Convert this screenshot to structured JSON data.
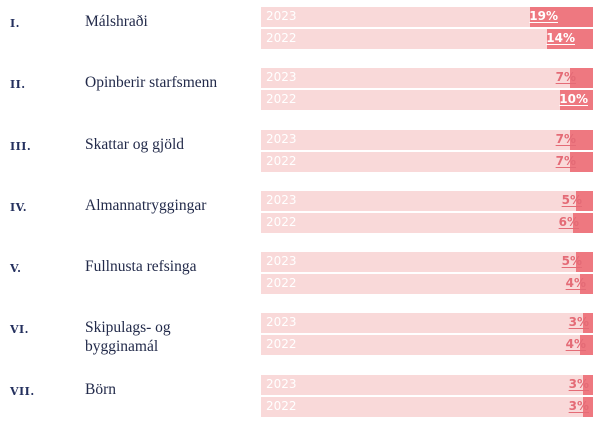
{
  "chart_data": {
    "type": "bar",
    "orientation": "horizontal",
    "categories": [
      {
        "numeral": "I.",
        "label": "Málshraði"
      },
      {
        "numeral": "II.",
        "label": "Opinberir starfsmenn"
      },
      {
        "numeral": "III.",
        "label": "Skattar og gjöld"
      },
      {
        "numeral": "IV.",
        "label": "Almannatryggingar"
      },
      {
        "numeral": "V.",
        "label": "Fullnusta refsinga"
      },
      {
        "numeral": "VI.",
        "label": "Skipulags- og bygginamál"
      },
      {
        "numeral": "VII.",
        "label": "Börn"
      }
    ],
    "series": [
      {
        "name": "2023",
        "values": [
          19,
          7,
          7,
          5,
          5,
          3,
          3
        ]
      },
      {
        "name": "2022",
        "values": [
          14,
          10,
          7,
          6,
          4,
          4,
          3
        ]
      }
    ],
    "value_suffix": "%",
    "xlim": [
      0,
      100
    ],
    "colors": {
      "track": "#f9d9d9",
      "fill": "#ee7880",
      "numeral": "#24305e",
      "label": "#222a4a"
    }
  }
}
